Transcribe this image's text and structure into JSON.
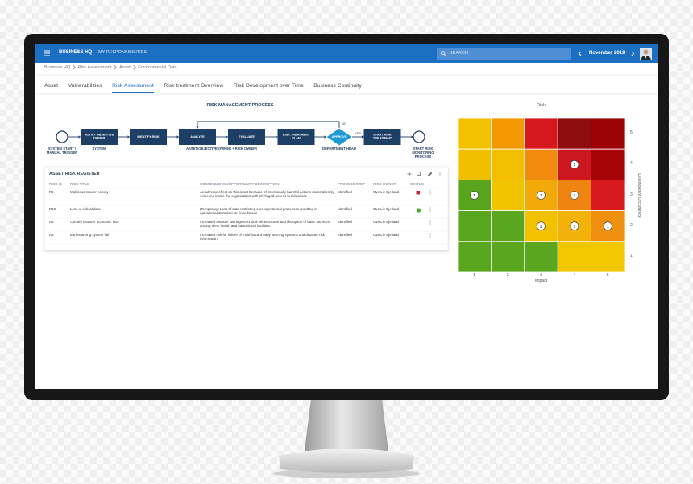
{
  "top_bar": {
    "brand": "BUSINESS HQ",
    "menu": "MY RESPONSIBILITIES",
    "search_placeholder": "SEARCH",
    "period": "November 2019"
  },
  "breadcrumb": [
    "Business HQ",
    "Risk Assessment",
    "Asset",
    "Environmental Data"
  ],
  "tabs": [
    {
      "label": "Asset",
      "active": false
    },
    {
      "label": "Vulnerabilities",
      "active": false
    },
    {
      "label": "Risk Assessment",
      "active": true
    },
    {
      "label": "Risk treatment Overview",
      "active": false
    },
    {
      "label": "Risk Development over Time",
      "active": false
    },
    {
      "label": "Business Continuity",
      "active": false
    }
  ],
  "process": {
    "title": "RISK MANAGEMENT PROCESS",
    "steps": [
      {
        "label": "NOTIFY OBJECTIVE OWNER",
        "shape": "box"
      },
      {
        "label": "IDENTIFY RISK",
        "shape": "box"
      },
      {
        "label": "ANALYZE",
        "shape": "box"
      },
      {
        "label": "EVALUATE",
        "shape": "box"
      },
      {
        "label": "RISK TREATMENT PLAN",
        "shape": "box"
      },
      {
        "label": "APPROVE",
        "shape": "diamond"
      },
      {
        "label": "START RISK TREATMENT",
        "shape": "box"
      }
    ],
    "no_label": "NO",
    "yes_label": "YES",
    "lanes": [
      "SYSTEM START / MANUAL TRIGGER",
      "SYSTEM",
      "ASSET/OBJECTIVE OWNER + RISK OWNER",
      "DEPARTMENT HEAD",
      "START RISK MONITORING PROCESS"
    ]
  },
  "risk_register": {
    "title": "ASSET RISK REGISTER",
    "columns": [
      "RISK ID",
      "RISK TITLE",
      "CONSEQUENCE/OPPORTUNITY DESCRIPTION",
      "PROCESS STEP",
      "RISK OWNER",
      "STATUS"
    ],
    "rows": [
      {
        "id": "R2",
        "title": "Malicious Insider Activity",
        "description": "An adverse effect on this asset because of intentionally harmful actions undertaken by someone inside the organization with privileged access to this asset.",
        "process_step": "Identified",
        "owner": "Ove Lie Bjelland",
        "status_color": "#c62828",
        "status_shape": "square"
      },
      {
        "id": "R19",
        "title": "Loss of critical data",
        "description": "(Temporary) Loss of data restricting core operational processes resulting in operational downtime or impediment",
        "process_step": "Identified",
        "owner": "Ove Lie Bjelland",
        "status_color": "#4caf2a",
        "status_shape": "circle"
      },
      {
        "id": "R3",
        "title": "Climate disaster economic loss",
        "description": "Increased disaster damage to critical infrastructure and disruption of basic services, among them health and educational facilities.",
        "process_step": "Identified",
        "owner": "Ove Lie Bjelland"
      },
      {
        "id": "R5",
        "title": "EarlyWarning system fail",
        "description": "Increased risk for failure of multi-hazard early warning systems and disaster risk information.",
        "process_step": "Identified",
        "owner": "Ove Lie Bjelland"
      }
    ]
  },
  "risk_matrix": {
    "title": "Risk",
    "x_label": "Impact",
    "y_label": "Likelihood of Occurrence",
    "impact_ticks": [
      1,
      2,
      3,
      4,
      5
    ],
    "likelihood_ticks": [
      5,
      4,
      3,
      2,
      1
    ],
    "cell_colors": [
      [
        "#f2c200",
        "#f39800",
        "#d6181e",
        "#8e0b0e",
        "#9c0205"
      ],
      [
        "#f0c000",
        "#f2c000",
        "#f28a10",
        "#cc1620",
        "#a80408"
      ],
      [
        "#58a41c",
        "#f2c300",
        "#f4a90a",
        "#f08410",
        "#d81a1e"
      ],
      [
        "#5aa61e",
        "#5aa61e",
        "#f2c200",
        "#f3b20a",
        "#f09010"
      ],
      [
        "#5aa61e",
        "#5aa61e",
        "#5aa61e",
        "#f2c700",
        "#f2c700"
      ]
    ],
    "markers": [
      {
        "impact": 4,
        "likelihood": 4,
        "count": 1
      },
      {
        "impact": 1,
        "likelihood": 3,
        "count": 1
      },
      {
        "impact": 3,
        "likelihood": 3,
        "count": 2
      },
      {
        "impact": 4,
        "likelihood": 3,
        "count": 4
      },
      {
        "impact": 3,
        "likelihood": 2,
        "count": 2
      },
      {
        "impact": 4,
        "likelihood": 2,
        "count": 1
      },
      {
        "impact": 5,
        "likelihood": 2,
        "count": 1
      }
    ]
  }
}
